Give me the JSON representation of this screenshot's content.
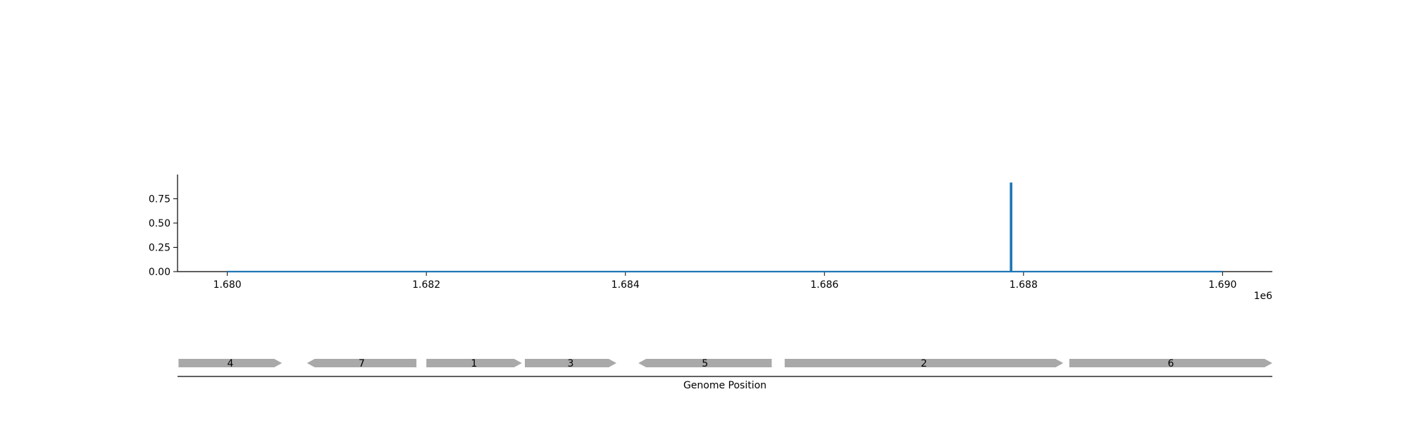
{
  "chart_data": [
    {
      "type": "line",
      "title": "",
      "xlabel": "",
      "ylabel": "",
      "xlim": [
        1679500,
        1690500
      ],
      "ylim": [
        0,
        1.0
      ],
      "x_ticks": [
        1680000,
        1682000,
        1684000,
        1686000,
        1688000,
        1690000
      ],
      "x_tick_labels": [
        "1.680",
        "1.682",
        "1.684",
        "1.686",
        "1.688",
        "1.690"
      ],
      "x_offset_label": "1e6",
      "y_ticks": [
        0,
        0.25,
        0.5,
        0.75
      ],
      "y_tick_labels": [
        "0.00",
        "0.25",
        "0.50",
        "0.75"
      ],
      "grid": false,
      "series": [
        {
          "color": "#1f77b4",
          "x": [
            1680000,
            1687870,
            1687870,
            1687880,
            1687880,
            1690000
          ],
          "y": [
            0,
            0,
            0.91,
            0.91,
            0,
            0
          ]
        }
      ]
    },
    {
      "type": "gene_track",
      "xlabel": "Genome Position",
      "xlim": [
        1679500,
        1690500
      ],
      "arrow_color": "#a9a9a9",
      "genes": [
        {
          "label": "4",
          "start": 1679510,
          "end": 1680550,
          "strand": "+"
        },
        {
          "label": "7",
          "start": 1680800,
          "end": 1681900,
          "strand": "-"
        },
        {
          "label": "1",
          "start": 1682000,
          "end": 1682960,
          "strand": "+"
        },
        {
          "label": "3",
          "start": 1682990,
          "end": 1683910,
          "strand": "+"
        },
        {
          "label": "5",
          "start": 1684130,
          "end": 1685470,
          "strand": "-"
        },
        {
          "label": "2",
          "start": 1685600,
          "end": 1688400,
          "strand": "+"
        },
        {
          "label": "6",
          "start": 1688460,
          "end": 1690500,
          "strand": "+"
        }
      ]
    }
  ]
}
